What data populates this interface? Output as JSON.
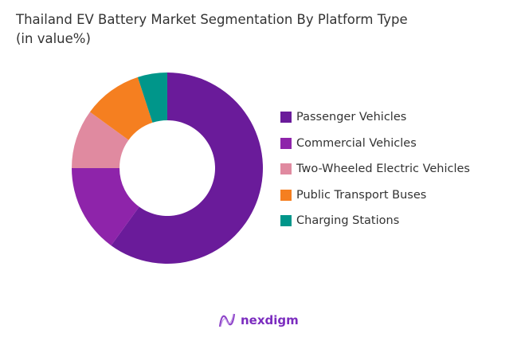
{
  "chart_data": {
    "type": "donut",
    "title": "Thailand EV Battery Market Segmentation By Platform Type",
    "subtitle": "(in value%)",
    "categories": [
      "Passenger Vehicles",
      "Commercial Vehicles",
      "Two-Wheeled Electric Vehicles",
      "Public Transport Buses",
      "Charging Stations"
    ],
    "values": [
      60,
      15,
      10,
      10,
      5
    ],
    "colors": [
      "#6a1b9a",
      "#8e24aa",
      "#e08aa0",
      "#f57f20",
      "#00968a"
    ],
    "legend_position": "right"
  },
  "logo": {
    "text": "nexdigm"
  }
}
